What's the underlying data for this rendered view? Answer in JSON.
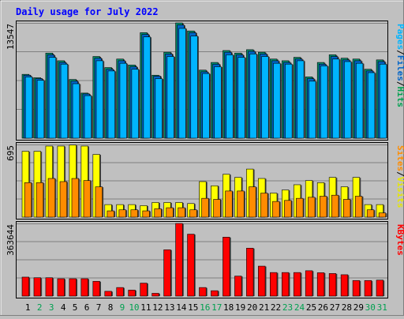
{
  "chart_data": {
    "title": "Daily usage for July 2022",
    "type": "bar",
    "categories": [
      "1",
      "2",
      "3",
      "4",
      "5",
      "6",
      "7",
      "8",
      "9",
      "10",
      "11",
      "12",
      "13",
      "14",
      "15",
      "16",
      "17",
      "18",
      "19",
      "20",
      "21",
      "22",
      "23",
      "24",
      "25",
      "26",
      "27",
      "28",
      "29",
      "30",
      "31"
    ],
    "weekend_days": [
      2,
      3,
      9,
      10,
      16,
      17,
      23,
      24,
      30,
      31
    ],
    "panels": [
      {
        "id": "hits",
        "max_label": "13547",
        "ylim": [
          0,
          13547
        ],
        "side_legend": [
          {
            "text": "Pages",
            "color": "#00b4ff"
          },
          {
            "text": "/",
            "color": "#000000"
          },
          {
            "text": "Files",
            "color": "#0064c8"
          },
          {
            "text": "/",
            "color": "#000000"
          },
          {
            "text": "Hits",
            "color": "#00a050"
          }
        ],
        "series": [
          {
            "name": "Hits",
            "color": "#009070",
            "values": [
              7500,
              7100,
              10000,
              9100,
              6900,
              5300,
              9600,
              8300,
              9300,
              8600,
              12400,
              7400,
              10100,
              13547,
              12600,
              8000,
              8900,
              10300,
              10000,
              10400,
              10100,
              9300,
              9100,
              9500,
              7200,
              8900,
              9800,
              9400,
              9300,
              8100,
              9200
            ]
          },
          {
            "name": "Files",
            "color": "#0064c8",
            "values": [
              7400,
              7000,
              9800,
              8900,
              6700,
              5200,
              9400,
              8100,
              9100,
              8400,
              12200,
              7300,
              9900,
              13300,
              12400,
              7800,
              8700,
              10100,
              9800,
              10200,
              9900,
              9100,
              8900,
              9300,
              7000,
              8700,
              9600,
              9200,
              9100,
              7900,
              9000
            ]
          },
          {
            "name": "Pages",
            "color": "#00b4ff",
            "values": [
              7200,
              6800,
              9500,
              8700,
              6400,
              5000,
              9100,
              7900,
              8800,
              8100,
              11900,
              7000,
              9600,
              12900,
              12000,
              7600,
              8400,
              9800,
              9500,
              9900,
              9600,
              8800,
              8700,
              9100,
              6700,
              8500,
              9300,
              9000,
              8800,
              7700,
              8700
            ]
          }
        ]
      },
      {
        "id": "visits",
        "max_label": "695",
        "ylim": [
          0,
          695
        ],
        "side_legend": [
          {
            "text": "Sites",
            "color": "#ff8c00"
          },
          {
            "text": "/",
            "color": "#000000"
          },
          {
            "text": "Visits",
            "color": "#e6e600"
          }
        ],
        "series": [
          {
            "name": "Visits",
            "color": "#ffff00",
            "values": [
              630,
              630,
              680,
              680,
              690,
              680,
              600,
              120,
              120,
              120,
              110,
              140,
              140,
              140,
              130,
              340,
              300,
              410,
              380,
              460,
              370,
              230,
              260,
              310,
              350,
              330,
              380,
              290,
              380,
              120,
              120
            ]
          },
          {
            "name": "Sites",
            "color": "#ff8c00",
            "values": [
              330,
              330,
              370,
              340,
              370,
              350,
              290,
              60,
              70,
              70,
              60,
              80,
              90,
              90,
              70,
              180,
              170,
              250,
              250,
              290,
              230,
              150,
              160,
              180,
              190,
              200,
              210,
              170,
              200,
              70,
              40
            ]
          }
        ]
      },
      {
        "id": "kbytes",
        "max_label": "363644",
        "ylim": [
          0,
          363644
        ],
        "side_legend": [
          {
            "text": "KBytes",
            "color": "#ff0000"
          }
        ],
        "series": [
          {
            "name": "KBytes",
            "color": "#ff0000",
            "values": [
              95000,
              92000,
              92000,
              87000,
              87000,
              87000,
              74000,
              24000,
              43000,
              30000,
              65000,
              14000,
              232000,
              363644,
              310000,
              43000,
              27000,
              295000,
              100000,
              240000,
              150000,
              118000,
              118000,
              118000,
              127000,
              117000,
              113000,
              107000,
              78000,
              78000,
              80000
            ]
          }
        ]
      }
    ]
  }
}
